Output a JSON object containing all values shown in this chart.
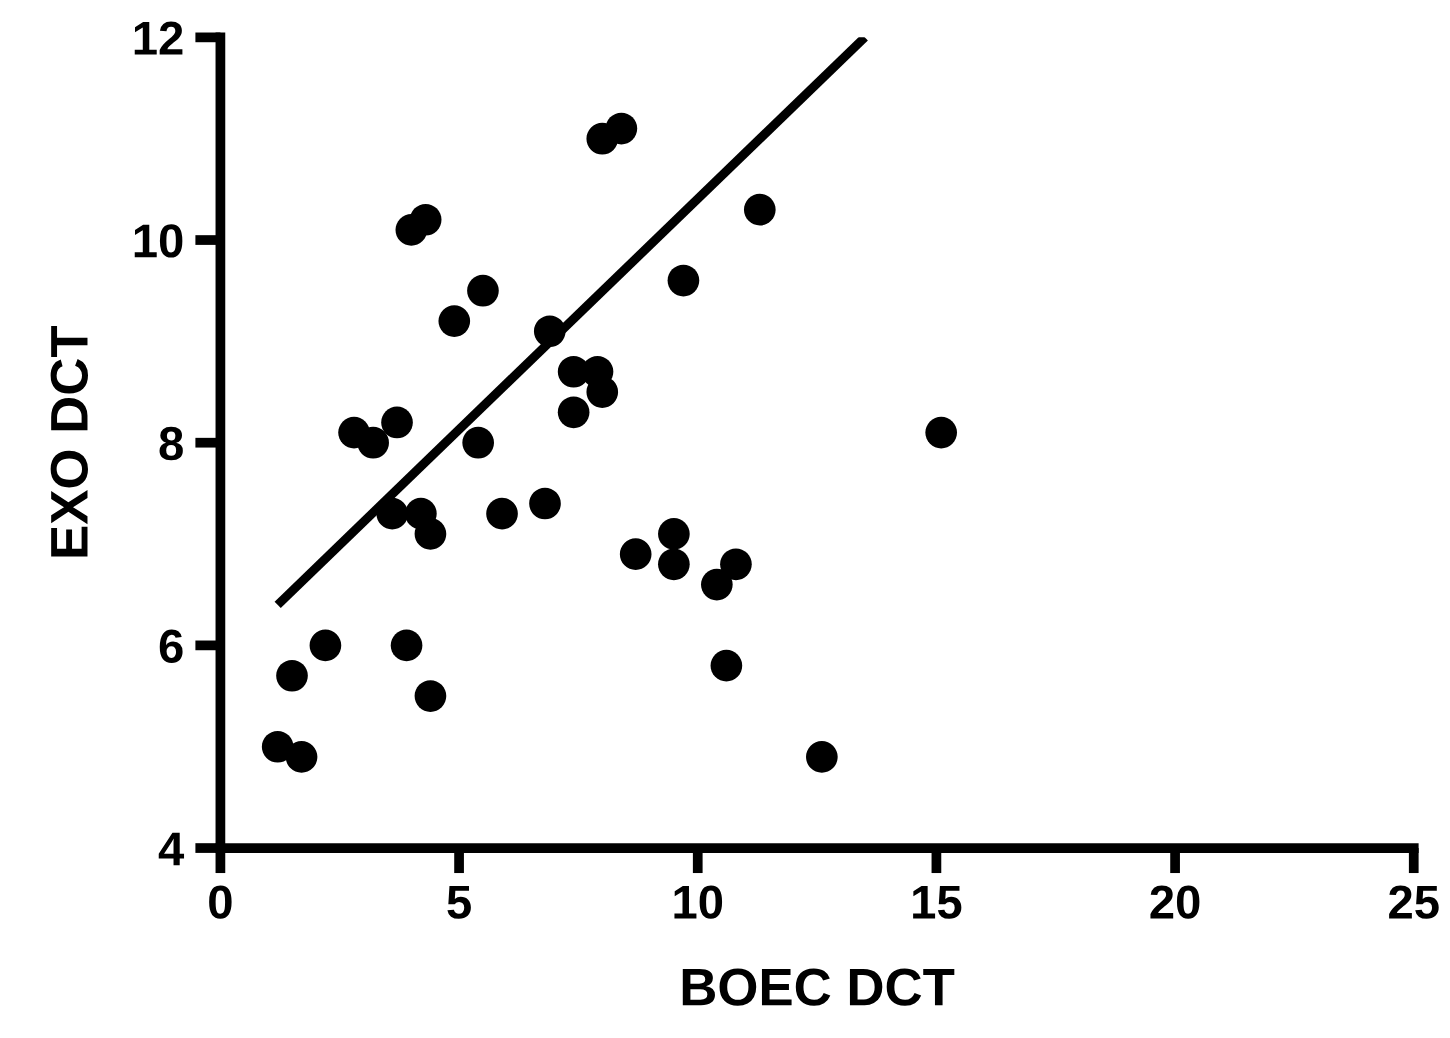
{
  "chart_data": {
    "type": "scatter",
    "xlabel": "BOEC DCT",
    "ylabel": "EXO DCT",
    "xlim": [
      0,
      25
    ],
    "ylim": [
      4,
      12
    ],
    "xticks": [
      0,
      5,
      10,
      15,
      20,
      25
    ],
    "yticks": [
      4,
      6,
      8,
      10,
      12
    ],
    "grid": false,
    "legend": false,
    "marker": "circle",
    "series": [
      {
        "color": "#000000",
        "x": [
          1.2,
          1.7,
          1.5,
          2.2,
          2.8,
          3.2,
          3.7,
          3.6,
          3.9,
          4.0,
          4.3,
          4.2,
          4.4,
          4.4,
          4.9,
          5.5,
          5.4,
          5.9,
          6.9,
          6.8,
          7.4,
          7.9,
          8.0,
          7.4,
          8.0,
          8.4,
          8.7,
          9.5,
          9.5,
          9.7,
          10.4,
          10.8,
          10.6,
          11.3,
          12.6,
          15.1
        ],
        "values": [
          5.0,
          4.9,
          5.7,
          6.0,
          8.1,
          8.0,
          8.2,
          7.3,
          6.0,
          10.1,
          10.2,
          7.3,
          7.1,
          5.5,
          9.2,
          9.5,
          8.0,
          7.3,
          9.1,
          7.4,
          8.7,
          8.7,
          8.5,
          8.3,
          11.0,
          11.1,
          6.9,
          7.1,
          6.8,
          9.6,
          6.6,
          6.8,
          5.8,
          10.3,
          4.9,
          8.1
        ]
      },
      {
        "type": "line",
        "color": "#000000",
        "line_style": "solid",
        "marker": "none",
        "x": [
          1.2,
          13.5
        ],
        "values": [
          6.4,
          12.0
        ]
      }
    ]
  }
}
